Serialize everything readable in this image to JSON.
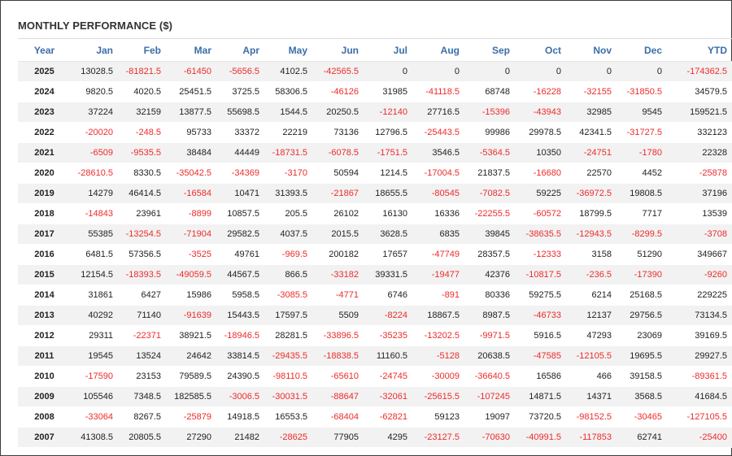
{
  "title": "MONTHLY PERFORMANCE ($)",
  "columns": [
    "Year",
    "Jan",
    "Feb",
    "Mar",
    "Apr",
    "May",
    "Jun",
    "Jul",
    "Aug",
    "Sep",
    "Oct",
    "Nov",
    "Dec",
    "YTD"
  ],
  "colors": {
    "header": "#3b6ea8",
    "negative": "#ee2b2b",
    "positive": "#222222",
    "stripe": "#f2f2f2"
  },
  "rows": [
    [
      "2025",
      "13028.5",
      "-81821.5",
      "-61450",
      "-5656.5",
      "4102.5",
      "-42565.5",
      "0",
      "0",
      "0",
      "0",
      "0",
      "0",
      "-174362.5"
    ],
    [
      "2024",
      "9820.5",
      "4020.5",
      "25451.5",
      "3725.5",
      "58306.5",
      "-46126",
      "31985",
      "-41118.5",
      "68748",
      "-16228",
      "-32155",
      "-31850.5",
      "34579.5"
    ],
    [
      "2023",
      "37224",
      "32159",
      "13877.5",
      "55698.5",
      "1544.5",
      "20250.5",
      "-12140",
      "27716.5",
      "-15396",
      "-43943",
      "32985",
      "9545",
      "159521.5"
    ],
    [
      "2022",
      "-20020",
      "-248.5",
      "95733",
      "33372",
      "22219",
      "73136",
      "12796.5",
      "-25443.5",
      "99986",
      "29978.5",
      "42341.5",
      "-31727.5",
      "332123"
    ],
    [
      "2021",
      "-6509",
      "-9535.5",
      "38484",
      "44449",
      "-18731.5",
      "-6078.5",
      "-1751.5",
      "3546.5",
      "-5364.5",
      "10350",
      "-24751",
      "-1780",
      "22328"
    ],
    [
      "2020",
      "-28610.5",
      "8330.5",
      "-35042.5",
      "-34369",
      "-3170",
      "50594",
      "1214.5",
      "-17004.5",
      "21837.5",
      "-16680",
      "22570",
      "4452",
      "-25878"
    ],
    [
      "2019",
      "14279",
      "46414.5",
      "-16584",
      "10471",
      "31393.5",
      "-21867",
      "18655.5",
      "-80545",
      "-7082.5",
      "59225",
      "-36972.5",
      "19808.5",
      "37196"
    ],
    [
      "2018",
      "-14843",
      "23961",
      "-8899",
      "10857.5",
      "205.5",
      "26102",
      "16130",
      "16336",
      "-22255.5",
      "-60572",
      "18799.5",
      "7717",
      "13539"
    ],
    [
      "2017",
      "55385",
      "-13254.5",
      "-71904",
      "29582.5",
      "4037.5",
      "2015.5",
      "3628.5",
      "6835",
      "39845",
      "-38635.5",
      "-12943.5",
      "-8299.5",
      "-3708"
    ],
    [
      "2016",
      "6481.5",
      "57356.5",
      "-3525",
      "49761",
      "-969.5",
      "200182",
      "17657",
      "-47749",
      "28357.5",
      "-12333",
      "3158",
      "51290",
      "349667"
    ],
    [
      "2015",
      "12154.5",
      "-18393.5",
      "-49059.5",
      "44567.5",
      "866.5",
      "-33182",
      "39331.5",
      "-19477",
      "42376",
      "-10817.5",
      "-236.5",
      "-17390",
      "-9260"
    ],
    [
      "2014",
      "31861",
      "6427",
      "15986",
      "5958.5",
      "-3085.5",
      "-4771",
      "6746",
      "-891",
      "80336",
      "59275.5",
      "6214",
      "25168.5",
      "229225"
    ],
    [
      "2013",
      "40292",
      "71140",
      "-91639",
      "15443.5",
      "17597.5",
      "5509",
      "-8224",
      "18867.5",
      "8987.5",
      "-46733",
      "12137",
      "29756.5",
      "73134.5"
    ],
    [
      "2012",
      "29311",
      "-22371",
      "38921.5",
      "-18946.5",
      "28281.5",
      "-33896.5",
      "-35235",
      "-13202.5",
      "-9971.5",
      "5916.5",
      "47293",
      "23069",
      "39169.5"
    ],
    [
      "2011",
      "19545",
      "13524",
      "24642",
      "33814.5",
      "-29435.5",
      "-18838.5",
      "11160.5",
      "-5128",
      "20638.5",
      "-47585",
      "-12105.5",
      "19695.5",
      "29927.5"
    ],
    [
      "2010",
      "-17590",
      "23153",
      "79589.5",
      "24390.5",
      "-98110.5",
      "-65610",
      "-24745",
      "-30009",
      "-36640.5",
      "16586",
      "466",
      "39158.5",
      "-89361.5"
    ],
    [
      "2009",
      "105546",
      "7348.5",
      "182585.5",
      "-3006.5",
      "-30031.5",
      "-88647",
      "-32061",
      "-25615.5",
      "-107245",
      "14871.5",
      "14371",
      "3568.5",
      "41684.5"
    ],
    [
      "2008",
      "-33064",
      "8267.5",
      "-25879",
      "14918.5",
      "16553.5",
      "-68404",
      "-62821",
      "59123",
      "19097",
      "73720.5",
      "-98152.5",
      "-30465",
      "-127105.5"
    ],
    [
      "2007",
      "41308.5",
      "20805.5",
      "27290",
      "21482",
      "-28625",
      "77905",
      "4295",
      "-23127.5",
      "-70630",
      "-40991.5",
      "-117853",
      "62741",
      "-25400"
    ]
  ]
}
